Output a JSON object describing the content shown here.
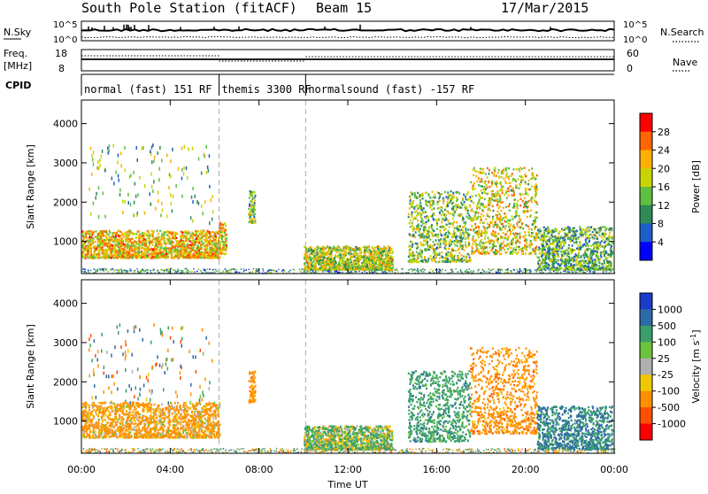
{
  "header": {
    "station": "South Pole Station (fitACF)",
    "beam": "Beam 15",
    "date": "17/Mar/2015"
  },
  "strips": {
    "nsky_label": "N.Sky",
    "nsky_ticks": [
      "10^5",
      "10^0"
    ],
    "nsearch_label": "N.Search",
    "nsearch_ticks": [
      "10^5",
      "10^0"
    ],
    "freq_label_1": "Freq.",
    "freq_label_2": "[MHz]",
    "freq_ticks": [
      "18",
      "8"
    ],
    "nave_label": "Nave",
    "nave_ticks": [
      "60",
      "0"
    ],
    "cpid_label": "CPID",
    "cpid_segments": [
      {
        "label": "normal (fast) 151 RF",
        "start_hour": 0.0,
        "end_hour": 6.2
      },
      {
        "label": "themis 3300 RF",
        "start_hour": 6.2,
        "end_hour": 10.1
      },
      {
        "label": "normalsound (fast) -157 RF",
        "start_hour": 10.1,
        "end_hour": 24.0
      }
    ]
  },
  "colorbars": {
    "power": {
      "label": "Power [dB]",
      "ticks": [
        "28",
        "24",
        "20",
        "16",
        "12",
        "8",
        "4"
      ],
      "colors": [
        "#0000ff",
        "#1e5ec8",
        "#2e8b57",
        "#5fbf40",
        "#c8d400",
        "#ffb000",
        "#ff6600",
        "#ff0000"
      ]
    },
    "velocity": {
      "label": "Velocity [m s",
      "label_exp": "-1",
      "ticks": [
        "1000",
        "500",
        "100",
        "25",
        "-25",
        "-100",
        "-500",
        "-1000"
      ],
      "colors": [
        "#1a3cc8",
        "#2e6aa8",
        "#3a9f6a",
        "#6cc43c",
        "#b0b0b0",
        "#f0c800",
        "#ff9000",
        "#ff5000",
        "#ff0000"
      ]
    }
  },
  "chart_data": [
    {
      "type": "heatmap",
      "title": "Power",
      "xlabel": "",
      "ylabel": "Slant Range [km]",
      "xlim": [
        0,
        24
      ],
      "ylim": [
        180,
        4600
      ],
      "x_ticks": [
        "00:00",
        "04:00",
        "08:00",
        "12:00",
        "16:00",
        "20:00",
        "00:00"
      ],
      "y_ticks": [
        "1000",
        "2000",
        "3000",
        "4000"
      ],
      "colorbar": "Power [dB]",
      "series": [
        {
          "x": [
            0.0,
            6.2
          ],
          "range_km": [
            600,
            1300
          ],
          "power_db": 20
        },
        {
          "x": [
            6.2,
            6.5
          ],
          "range_km": [
            700,
            1500
          ],
          "power_db": 20
        },
        {
          "x": [
            7.5,
            7.8
          ],
          "range_km": [
            1500,
            2300
          ],
          "power_db": 14
        },
        {
          "x": [
            10.0,
            14.0
          ],
          "range_km": [
            300,
            900
          ],
          "power_db": 16
        },
        {
          "x": [
            14.7,
            17.5
          ],
          "range_km": [
            500,
            2300
          ],
          "power_db": 14
        },
        {
          "x": [
            17.5,
            20.5
          ],
          "range_km": [
            700,
            2900
          ],
          "power_db": 18
        },
        {
          "x": [
            20.5,
            23.9
          ],
          "range_km": [
            300,
            1400
          ],
          "power_db": 12
        }
      ]
    },
    {
      "type": "heatmap",
      "title": "Velocity",
      "xlabel": "Time UT",
      "ylabel": "Slant Range [km]",
      "xlim": [
        0,
        24
      ],
      "ylim": [
        180,
        4600
      ],
      "x_ticks": [
        "00:00",
        "04:00",
        "08:00",
        "12:00",
        "16:00",
        "20:00",
        "00:00"
      ],
      "y_ticks": [
        "1000",
        "2000",
        "3000",
        "4000"
      ],
      "colorbar": "Velocity [m s-1]",
      "series": [
        {
          "x": [
            0.0,
            6.2
          ],
          "range_km": [
            600,
            1500
          ],
          "velocity": -200
        },
        {
          "x": [
            7.5,
            7.8
          ],
          "range_km": [
            1500,
            2300
          ],
          "velocity": -300
        },
        {
          "x": [
            10.0,
            14.0
          ],
          "range_km": [
            300,
            900
          ],
          "velocity": 100
        },
        {
          "x": [
            14.7,
            17.5
          ],
          "range_km": [
            500,
            2300
          ],
          "velocity": 300
        },
        {
          "x": [
            17.5,
            20.5
          ],
          "range_km": [
            700,
            2900
          ],
          "velocity": -300
        },
        {
          "x": [
            20.5,
            23.9
          ],
          "range_km": [
            300,
            1400
          ],
          "velocity": 500
        }
      ]
    }
  ]
}
